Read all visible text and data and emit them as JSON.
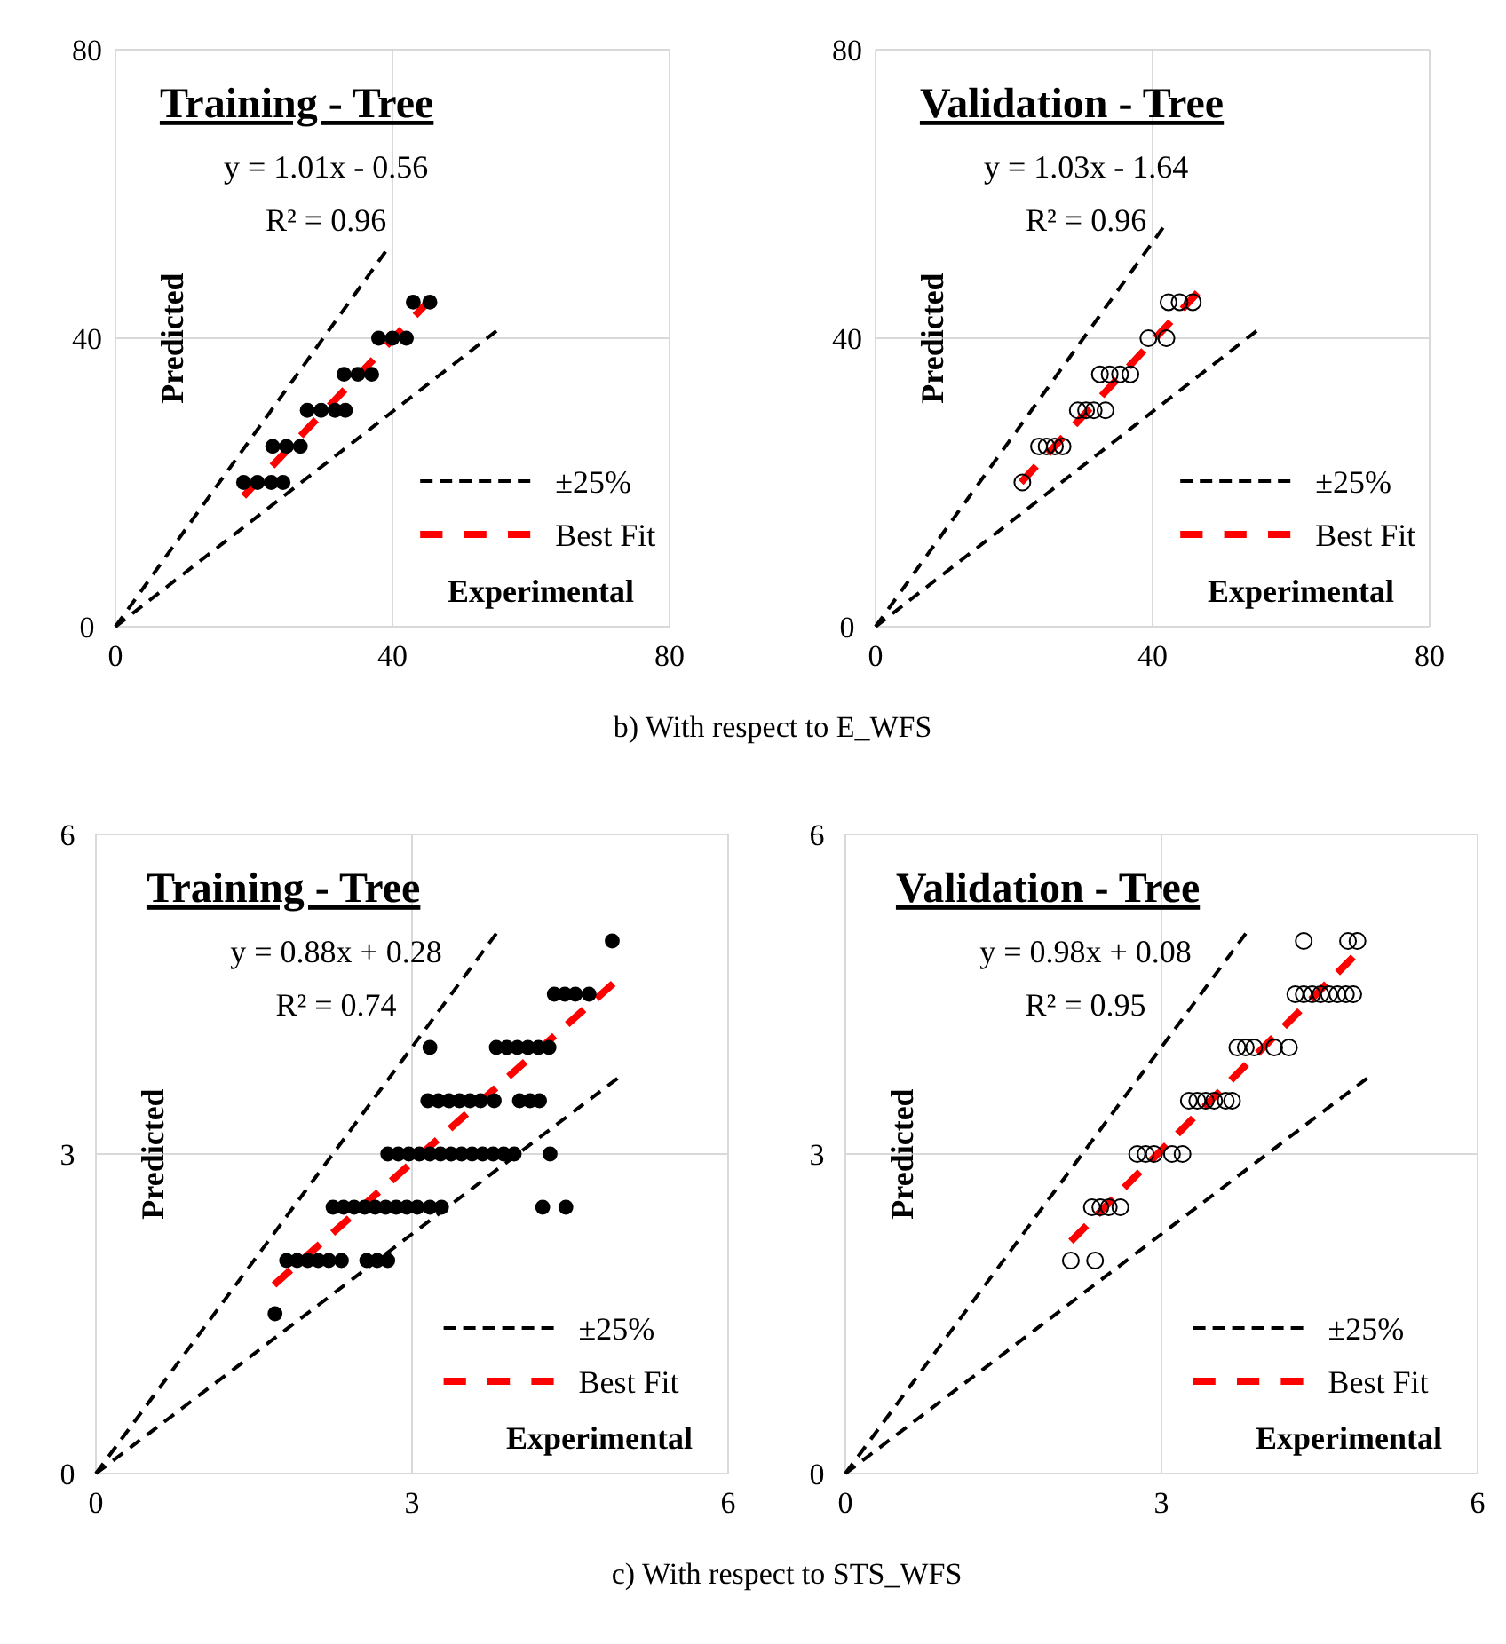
{
  "chart_data": [
    {
      "type": "scatter",
      "title": "Training - Tree",
      "xlabel": "Experimental",
      "ylabel": "Predicted",
      "annotations": [
        "y = 1.01x - 0.56",
        "R² = 0.96",
        "b) With respect to E_WFS"
      ],
      "xlim": [
        0,
        80
      ],
      "ylim": [
        0,
        80
      ],
      "xticks": [
        0,
        40,
        80
      ],
      "yticks": [
        0,
        40,
        80
      ],
      "grid": true,
      "legend": "bottom right",
      "series": [
        {
          "type": "scatter",
          "marker": "circle",
          "color": "#000000",
          "x": [
            43,
            45.4,
            38,
            40,
            42,
            33,
            35,
            37,
            27.7,
            29.7,
            31.7,
            33.2,
            22.7,
            24.7,
            26.7,
            18.5,
            20.5,
            22.5,
            24.2
          ],
          "values": [
            45,
            45,
            40,
            40,
            40,
            35,
            35,
            35,
            30,
            30,
            30,
            30,
            25,
            25,
            25,
            20,
            20,
            20,
            20
          ]
        },
        {
          "type": "line",
          "name": "±25%",
          "color": "#000000",
          "line_style": "dashed",
          "x": [
            0,
            39
          ],
          "values": [
            0,
            52
          ]
        },
        {
          "type": "line",
          "color": "#000000",
          "line_style": "dashed",
          "x": [
            0,
            55
          ],
          "values": [
            0,
            41
          ]
        },
        {
          "type": "line",
          "name": "Best Fit",
          "color": "#ff0000",
          "line_style": "dashed",
          "x": [
            18.5,
            45.5
          ],
          "values": [
            18.1,
            45.4
          ]
        }
      ]
    },
    {
      "type": "scatter",
      "title": "Validation - Tree",
      "xlabel": "Experimental",
      "ylabel": "Predicted",
      "annotations": [
        "y = 1.03x - 1.64",
        "R² = 0.96"
      ],
      "xlim": [
        0,
        80
      ],
      "ylim": [
        0,
        80
      ],
      "xticks": [
        0,
        40,
        80
      ],
      "yticks": [
        0,
        40,
        80
      ],
      "grid": true,
      "legend": "bottom right",
      "series": [
        {
          "type": "scatter",
          "marker": "circle",
          "color": "#000000",
          "x": [
            42.3,
            43.9,
            45.8,
            39.4,
            42,
            32.4,
            33.8,
            35.3,
            36.8,
            29.2,
            30.4,
            31.5,
            33.2,
            23.6,
            24.7,
            25.9,
            27,
            21.2
          ],
          "values": [
            45,
            45,
            45,
            40,
            40,
            35,
            35,
            35,
            35,
            30,
            30,
            30,
            30,
            25,
            25,
            25,
            25,
            20
          ]
        },
        {
          "type": "line",
          "name": "±25%",
          "color": "#000000",
          "line_style": "dashed",
          "x": [
            0,
            41.5
          ],
          "values": [
            0,
            55.3
          ]
        },
        {
          "type": "line",
          "color": "#000000",
          "line_style": "dashed",
          "x": [
            0,
            55
          ],
          "values": [
            0,
            41
          ]
        },
        {
          "type": "line",
          "name": "Best Fit",
          "color": "#ff0000",
          "line_style": "dashed",
          "x": [
            21,
            46.5
          ],
          "values": [
            20,
            46.3
          ]
        }
      ]
    },
    {
      "type": "scatter",
      "title": "Training - Tree",
      "xlabel": "Experimental",
      "ylabel": "Predicted",
      "annotations": [
        "y = 0.88x + 0.28",
        "R² = 0.74",
        "c) With respect to STS_WFS"
      ],
      "xlim": [
        0,
        6
      ],
      "ylim": [
        0,
        6
      ],
      "xticks": [
        0,
        3,
        6
      ],
      "yticks": [
        0,
        3,
        6
      ],
      "grid": true,
      "legend": "bottom right",
      "series": [
        {
          "type": "scatter",
          "marker": "circle",
          "color": "#000000",
          "x": [
            4.9,
            4.35,
            4.45,
            4.55,
            4.68,
            3.17,
            3.8,
            3.9,
            4,
            4.1,
            4.2,
            4.3,
            3.15,
            3.25,
            3.35,
            3.45,
            3.55,
            3.65,
            3.78,
            4.02,
            4.12,
            4.21,
            2.77,
            2.87,
            2.97,
            3.07,
            3.17,
            3.27,
            3.37,
            3.47,
            3.57,
            3.67,
            3.77,
            3.87,
            3.97,
            4.31,
            2.25,
            2.35,
            2.45,
            2.55,
            2.65,
            2.75,
            2.85,
            2.95,
            3.05,
            3.17,
            3.28,
            4.24,
            4.46,
            1.81,
            1.91,
            2.01,
            2.11,
            2.21,
            2.33,
            2.57,
            2.67,
            2.77,
            1.7
          ],
          "values": [
            5,
            4.5,
            4.5,
            4.5,
            4.5,
            4,
            4,
            4,
            4,
            4,
            4,
            4,
            3.5,
            3.5,
            3.5,
            3.5,
            3.5,
            3.5,
            3.5,
            3.5,
            3.5,
            3.5,
            3,
            3,
            3,
            3,
            3,
            3,
            3,
            3,
            3,
            3,
            3,
            3,
            3,
            3,
            2.5,
            2.5,
            2.5,
            2.5,
            2.5,
            2.5,
            2.5,
            2.5,
            2.5,
            2.5,
            2.5,
            2.5,
            2.5,
            2,
            2,
            2,
            2,
            2,
            2,
            2,
            2,
            2,
            1.5
          ]
        },
        {
          "type": "line",
          "name": "±25%",
          "color": "#000000",
          "line_style": "dashed",
          "x": [
            0,
            3.8
          ],
          "values": [
            0,
            5.07
          ]
        },
        {
          "type": "line",
          "color": "#000000",
          "line_style": "dashed",
          "x": [
            0,
            4.95
          ],
          "values": [
            0,
            3.71
          ]
        },
        {
          "type": "line",
          "name": "Best Fit",
          "color": "#ff0000",
          "line_style": "dashed",
          "x": [
            1.69,
            4.91
          ],
          "values": [
            1.77,
            4.6
          ]
        }
      ]
    },
    {
      "type": "scatter",
      "title": "Validation - Tree",
      "xlabel": "Experimental",
      "ylabel": "Predicted",
      "annotations": [
        "y = 0.98x + 0.08",
        "R² = 0.95"
      ],
      "xlim": [
        0,
        6
      ],
      "ylim": [
        0,
        6
      ],
      "xticks": [
        0,
        3,
        6
      ],
      "yticks": [
        0,
        3,
        6
      ],
      "grid": true,
      "legend": "bottom right",
      "series": [
        {
          "type": "scatter",
          "marker": "circle",
          "color": "#000000",
          "x": [
            4.35,
            4.77,
            4.86,
            4.27,
            4.35,
            4.43,
            4.51,
            4.59,
            4.67,
            4.75,
            4.82,
            3.72,
            3.8,
            3.88,
            4.07,
            4.21,
            3.26,
            3.34,
            3.42,
            3.5,
            3.61,
            3.67,
            2.77,
            2.85,
            2.93,
            3.1,
            3.2,
            2.34,
            2.42,
            2.5,
            2.61,
            2.14,
            2.37
          ],
          "values": [
            5,
            5,
            5,
            4.5,
            4.5,
            4.5,
            4.5,
            4.5,
            4.5,
            4.5,
            4.5,
            4,
            4,
            4,
            4,
            4,
            3.5,
            3.5,
            3.5,
            3.5,
            3.5,
            3.5,
            3,
            3,
            3,
            3,
            3,
            2.5,
            2.5,
            2.5,
            2.5,
            2,
            2
          ]
        },
        {
          "type": "line",
          "name": "±25%",
          "color": "#000000",
          "line_style": "dashed",
          "x": [
            0,
            3.8
          ],
          "values": [
            0,
            5.07
          ]
        },
        {
          "type": "line",
          "color": "#000000",
          "line_style": "dashed",
          "x": [
            0,
            4.95
          ],
          "values": [
            0,
            3.71
          ]
        },
        {
          "type": "line",
          "name": "Best Fit",
          "color": "#ff0000",
          "line_style": "dashed",
          "x": [
            2.14,
            4.82
          ],
          "values": [
            2.18,
            4.85
          ]
        }
      ]
    }
  ]
}
